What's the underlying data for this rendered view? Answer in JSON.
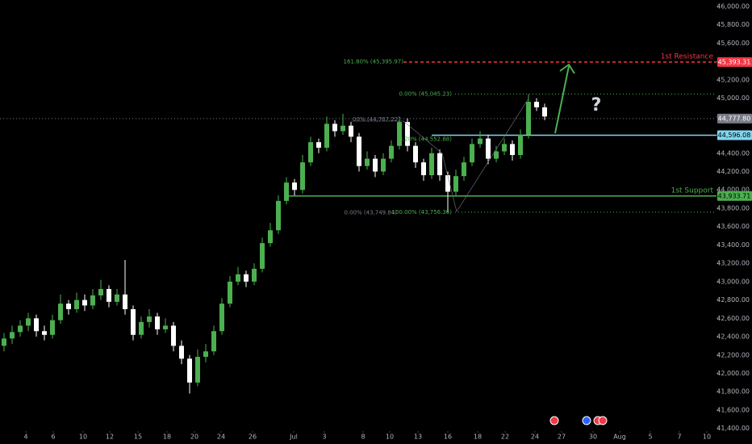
{
  "chart_data": {
    "type": "candlestick",
    "xlim": [
      -0.5,
      88.3
    ],
    "xticks": [
      {
        "value": 2.7,
        "label": "4"
      },
      {
        "value": 6.1,
        "label": "6"
      },
      {
        "value": 9.8,
        "label": "10"
      },
      {
        "value": 13.1,
        "label": "12"
      },
      {
        "value": 16.6,
        "label": "15"
      },
      {
        "value": 20.2,
        "label": "18"
      },
      {
        "value": 23.6,
        "label": "20"
      },
      {
        "value": 26.9,
        "label": "24"
      },
      {
        "value": 30.8,
        "label": "26"
      },
      {
        "value": 35.9,
        "label": "Jul"
      },
      {
        "value": 39.7,
        "label": "3"
      },
      {
        "value": 44.5,
        "label": "8"
      },
      {
        "value": 47.8,
        "label": "10"
      },
      {
        "value": 51.3,
        "label": "13"
      },
      {
        "value": 55,
        "label": "16"
      },
      {
        "value": 58.7,
        "label": "18"
      },
      {
        "value": 62.1,
        "label": "22"
      },
      {
        "value": 65.8,
        "label": "24"
      },
      {
        "value": 69.1,
        "label": "27"
      },
      {
        "value": 73,
        "label": "30"
      },
      {
        "value": 76.3,
        "label": "Aug"
      },
      {
        "value": 80.1,
        "label": "5"
      },
      {
        "value": 83.7,
        "label": "7"
      },
      {
        "value": 87.1,
        "label": "10"
      }
    ],
    "ylim": [
      41230,
      46070
    ],
    "yticks": [
      {
        "value": 41400,
        "label": "41,400.00"
      },
      {
        "value": 41600,
        "label": "41,600.00"
      },
      {
        "value": 41800,
        "label": "41,800.00"
      },
      {
        "value": 42000,
        "label": "42,000.00"
      },
      {
        "value": 42200,
        "label": "42,200.00"
      },
      {
        "value": 42400,
        "label": "42,400.00"
      },
      {
        "value": 42600,
        "label": "42,600.00"
      },
      {
        "value": 42800,
        "label": "42,800.00"
      },
      {
        "value": 43000,
        "label": "43,000.00"
      },
      {
        "value": 43200,
        "label": "43,200.00"
      },
      {
        "value": 43400,
        "label": "43,400.00"
      },
      {
        "value": 43600,
        "label": "43,600.00"
      },
      {
        "value": 43800,
        "label": "43,800.00"
      },
      {
        "value": 44000,
        "label": "44,000.00"
      },
      {
        "value": 44200,
        "label": "44,200.00"
      },
      {
        "value": 44400,
        "label": "44,400.00"
      },
      {
        "value": 44600,
        "label": "44,600.00"
      },
      {
        "value": 44800,
        "label": "44,800.00"
      },
      {
        "value": 45000,
        "label": "45,000.00"
      },
      {
        "value": 45200,
        "label": "45,200.00"
      },
      {
        "value": 45400,
        "label": "45,400.00"
      },
      {
        "value": 45600,
        "label": "45,600.00"
      },
      {
        "value": 45800,
        "label": "45,800.00"
      },
      {
        "value": 46000,
        "label": "46,000.00"
      }
    ],
    "up_color": "#4caf50",
    "down_color": "#ffffff",
    "x": [
      0,
      1,
      2,
      3,
      4,
      5,
      6,
      7,
      8,
      9,
      10,
      11,
      12,
      13,
      14,
      15,
      16,
      17,
      18,
      19,
      20,
      21,
      22,
      23,
      24,
      25,
      26,
      27,
      28,
      29,
      30,
      31,
      32,
      33,
      34,
      35,
      36,
      37,
      38,
      39,
      40,
      41,
      42,
      43,
      44,
      45,
      46,
      47,
      48,
      49,
      50,
      51,
      52,
      53,
      54,
      55,
      56,
      57,
      58,
      59,
      60,
      61,
      62,
      63,
      64,
      65,
      66,
      67
    ],
    "open": [
      42300,
      42380,
      42450,
      42520,
      42600,
      42460,
      42420,
      42580,
      42760,
      42700,
      42800,
      42740,
      42850,
      42920,
      42780,
      42860,
      42700,
      42420,
      42560,
      42620,
      42480,
      42520,
      42300,
      42160,
      41900,
      42180,
      42240,
      42460,
      42760,
      43000,
      43080,
      43000,
      43140,
      43420,
      43560,
      43880,
      44080,
      44000,
      44300,
      44520,
      44460,
      44720,
      44640,
      44700,
      44580,
      44260,
      44340,
      44200,
      44340,
      44480,
      44740,
      44480,
      44300,
      44160,
      44400,
      44160,
      43980,
      44150,
      44300,
      44500,
      44560,
      44340,
      44420,
      44500,
      44380,
      44600,
      44960,
      44900
    ],
    "high": [
      42440,
      42520,
      42580,
      42660,
      42640,
      42520,
      42640,
      42860,
      42800,
      42880,
      42860,
      42920,
      43020,
      42960,
      42920,
      43236,
      42740,
      42620,
      42700,
      42660,
      42600,
      42560,
      42360,
      42200,
      42260,
      42320,
      42520,
      42820,
      43060,
      43160,
      43120,
      43200,
      43480,
      43640,
      43940,
      44140,
      44120,
      44380,
      44580,
      44560,
      44800,
      44760,
      44830,
      44740,
      44620,
      44420,
      44380,
      44400,
      44540,
      44800,
      44780,
      44520,
      44340,
      44460,
      44440,
      44200,
      44220,
      44360,
      44560,
      44640,
      44600,
      44480,
      44560,
      44540,
      44660,
      45045,
      45000,
      44940
    ],
    "low": [
      42240,
      42320,
      42400,
      42460,
      42400,
      42360,
      42380,
      42540,
      42640,
      42660,
      42680,
      42700,
      42800,
      42720,
      42740,
      42640,
      42360,
      42380,
      42500,
      42420,
      42440,
      42240,
      42100,
      41780,
      41860,
      42120,
      42200,
      42420,
      42720,
      42960,
      42940,
      42960,
      43100,
      43380,
      43520,
      43840,
      43940,
      43960,
      44260,
      44400,
      44420,
      44580,
      44600,
      44520,
      44200,
      44220,
      44140,
      44160,
      44300,
      44440,
      44420,
      44240,
      44100,
      44120,
      44100,
      43756,
      43940,
      44100,
      44260,
      44460,
      44280,
      44300,
      44380,
      44320,
      44340,
      44560,
      44860,
      44760
    ],
    "close": [
      42380,
      42450,
      42520,
      42600,
      42460,
      42420,
      42580,
      42760,
      42700,
      42800,
      42740,
      42850,
      42920,
      42780,
      42860,
      42700,
      42420,
      42560,
      42620,
      42480,
      42520,
      42300,
      42160,
      41900,
      42180,
      42240,
      42460,
      42760,
      43000,
      43080,
      43000,
      43140,
      43420,
      43560,
      43880,
      44080,
      44000,
      44300,
      44520,
      44460,
      44720,
      44640,
      44700,
      44580,
      44260,
      44340,
      44200,
      44340,
      44480,
      44740,
      44480,
      44300,
      44160,
      44400,
      44160,
      43980,
      44150,
      44300,
      44500,
      44560,
      44340,
      44420,
      44500,
      44380,
      44600,
      44960,
      44900,
      44800
    ],
    "levels": [
      {
        "name": "1st Resistance",
        "value": 45393.31,
        "value_label": "45,393.31",
        "color": "#f23645",
        "text_color": "#ffffff",
        "style": "dashed"
      },
      {
        "value": 44777.8,
        "value_label": "44,777.80",
        "color": "#787b86",
        "text_color": "#ffffff",
        "style": "dotted"
      },
      {
        "value": 44596.08,
        "value_label": "44,596.08",
        "color": "#7fd6f0",
        "text_color": "#000000",
        "style": "solid"
      },
      {
        "name": "1st Support",
        "value": 43933.71,
        "value_label": "43,933.71",
        "color": "#4caf50",
        "text_color": "#000000",
        "style": "solid"
      }
    ],
    "fib_lines": [
      {
        "value": 45395.97,
        "label": "161.80% (45,395.97)",
        "color": "#4caf50",
        "dotted": false
      },
      {
        "value": 45045.23,
        "label": "0.00% (45,045.23)",
        "color": "#4caf50",
        "dotted": true
      },
      {
        "value": 44767.22,
        "label": "00% (44,767.22)",
        "color": "#787b86",
        "dotted": false
      },
      {
        "value": 44552.88,
        "label": "8.20% (44,552.88)",
        "color": "#4caf50",
        "dotted": false
      },
      {
        "value": 43749.84,
        "label": "0.00% (43,749.84)",
        "color": "#787b86",
        "dotted": false
      },
      {
        "value": 43756.36,
        "label": "100.00% (43,756.36)",
        "color": "#4caf50",
        "dotted": true
      }
    ],
    "annotation": "?"
  }
}
